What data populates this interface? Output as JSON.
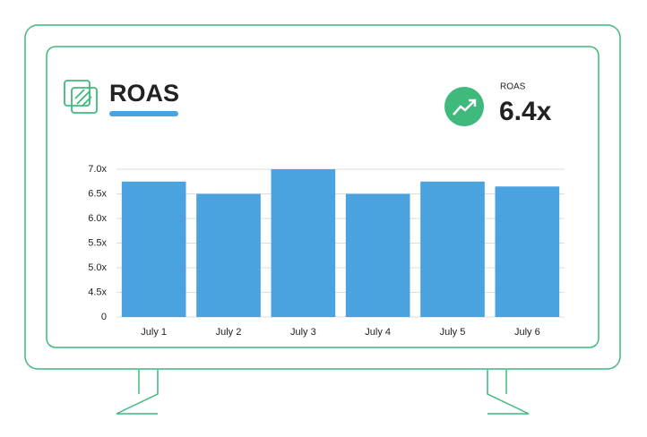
{
  "chart_data": {
    "type": "bar",
    "title": "ROAS",
    "kpi": {
      "label": "ROAS",
      "value": "6.4x"
    },
    "categories": [
      "July 1",
      "July 2",
      "July 3",
      "July 4",
      "July 5",
      "July 6"
    ],
    "values": [
      6.75,
      6.5,
      7.0,
      6.5,
      6.75,
      6.65
    ],
    "color": "#4aa3df",
    "ylim": [
      0,
      7.0
    ],
    "yticks": [
      0,
      {
        "value": 4.5,
        "label": "4.5x"
      },
      {
        "value": 5.0,
        "label": "5.0x"
      },
      {
        "value": 5.5,
        "label": "5.5x"
      },
      {
        "value": 6.0,
        "label": "6.0x"
      },
      {
        "value": 6.5,
        "label": "6.5x"
      },
      {
        "value": 7.0,
        "label": "7.0x"
      }
    ],
    "grid": true
  }
}
